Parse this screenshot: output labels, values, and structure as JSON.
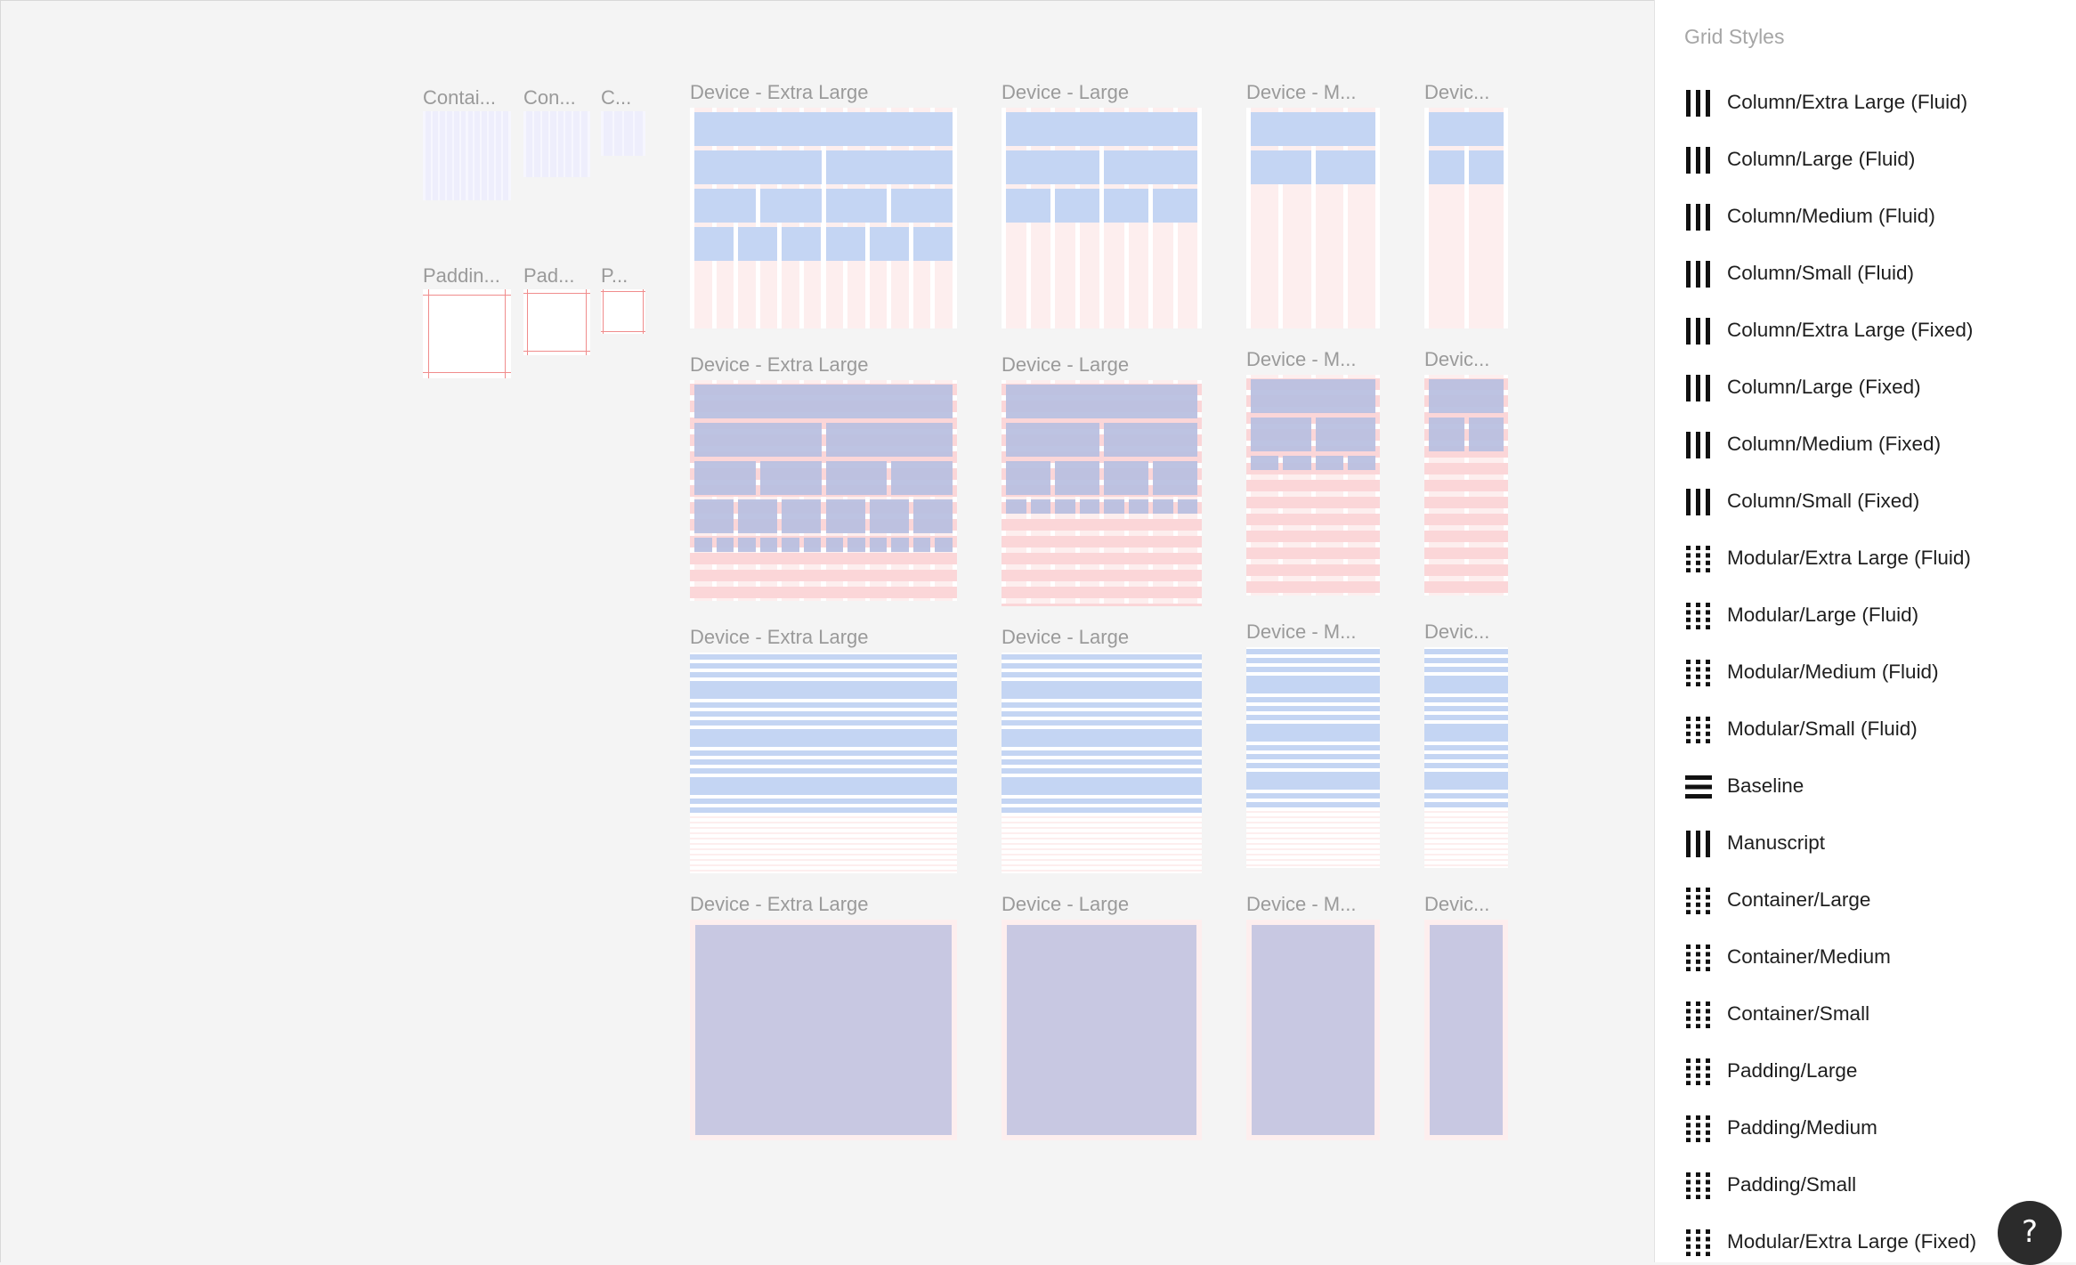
{
  "canvas": {
    "container_labels": [
      "Contai...",
      "Con...",
      "C..."
    ],
    "padding_labels": [
      "Paddin...",
      "Pad...",
      "P..."
    ],
    "device_labels": {
      "xl": "Device - Extra Large",
      "lg": "Device - Large",
      "md": "Device - M...",
      "sm": "Devic..."
    },
    "colors": {
      "column_blue": "#c4d5f3",
      "column_pink": "#fdeeee",
      "row_pink": "#fbd6d8",
      "padding_purple": "#c8c8e2",
      "container_lavender": "#eeeefc",
      "padding_outline": "#f08c8c"
    }
  },
  "panel": {
    "title": "Grid Styles",
    "items": [
      {
        "label": "Column/Extra Large (Fluid)",
        "icon": "columns-icon"
      },
      {
        "label": "Column/Large (Fluid)",
        "icon": "columns-icon"
      },
      {
        "label": "Column/Medium (Fluid)",
        "icon": "columns-icon"
      },
      {
        "label": "Column/Small (Fluid)",
        "icon": "columns-icon"
      },
      {
        "label": "Column/Extra Large (Fixed)",
        "icon": "columns-icon"
      },
      {
        "label": "Column/Large (Fixed)",
        "icon": "columns-icon"
      },
      {
        "label": "Column/Medium (Fixed)",
        "icon": "columns-icon"
      },
      {
        "label": "Column/Small (Fixed)",
        "icon": "columns-icon"
      },
      {
        "label": "Modular/Extra Large (Fluid)",
        "icon": "grid-dots-icon"
      },
      {
        "label": "Modular/Large (Fluid)",
        "icon": "grid-dots-icon"
      },
      {
        "label": "Modular/Medium (Fluid)",
        "icon": "grid-dots-icon"
      },
      {
        "label": "Modular/Small (Fluid)",
        "icon": "grid-dots-icon"
      },
      {
        "label": "Baseline",
        "icon": "rows-icon"
      },
      {
        "label": "Manuscript",
        "icon": "columns-icon"
      },
      {
        "label": "Container/Large",
        "icon": "grid-dots-icon"
      },
      {
        "label": "Container/Medium",
        "icon": "grid-dots-icon"
      },
      {
        "label": "Container/Small",
        "icon": "grid-dots-icon"
      },
      {
        "label": "Padding/Large",
        "icon": "grid-dots-icon"
      },
      {
        "label": "Padding/Medium",
        "icon": "grid-dots-icon"
      },
      {
        "label": "Padding/Small",
        "icon": "grid-dots-icon"
      },
      {
        "label": "Modular/Extra Large (Fixed)",
        "icon": "grid-dots-icon"
      }
    ]
  },
  "help": {
    "label": "?"
  }
}
